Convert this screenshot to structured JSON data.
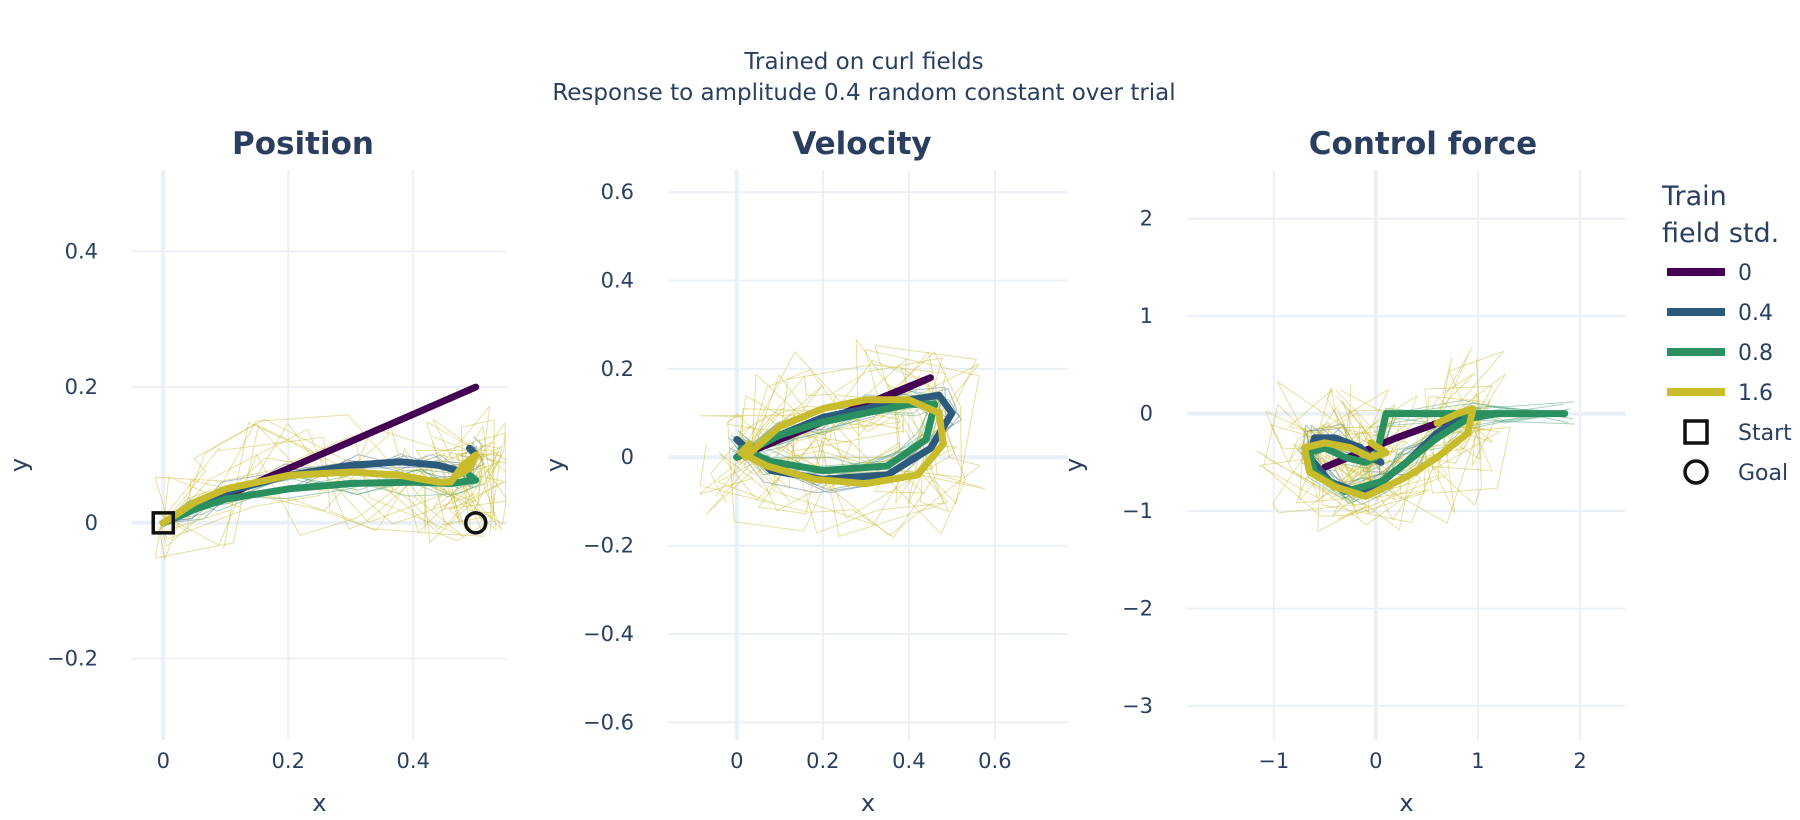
{
  "figure": {
    "title_line1": "Trained on curl fields",
    "title_line2": "Response to amplitude 0.4 random constant over trial"
  },
  "legend": {
    "title_line1": "Train",
    "title_line2": "field std.",
    "items": [
      {
        "label": "0",
        "color": "#440154",
        "kind": "line"
      },
      {
        "label": "0.4",
        "color": "#2c5a7c",
        "kind": "line"
      },
      {
        "label": "0.8",
        "color": "#2b9060",
        "kind": "line"
      },
      {
        "label": "1.6",
        "color": "#c8bb2c",
        "kind": "line"
      },
      {
        "label": "Start",
        "color": "#111111",
        "kind": "square"
      },
      {
        "label": "Goal",
        "color": "#111111",
        "kind": "circle"
      }
    ],
    "placement": "right"
  },
  "chart_data": [
    {
      "type": "line",
      "title": "Position",
      "xlabel": "x",
      "ylabel": "y",
      "xlim": [
        -0.05,
        0.55
      ],
      "ylim": [
        -0.32,
        0.52
      ],
      "xticks": [
        0,
        0.2,
        0.4
      ],
      "xtick_labels": [
        "0",
        "0.2",
        "0.4"
      ],
      "yticks": [
        -0.2,
        0,
        0.2,
        0.4
      ],
      "ytick_labels": [
        "−0.2",
        "0",
        "0.2",
        "0.4"
      ],
      "series": [
        {
          "name": "0",
          "x": [
            0,
            0.1,
            0.2,
            0.3,
            0.4,
            0.5
          ],
          "y": [
            0,
            0.04,
            0.08,
            0.12,
            0.16,
            0.2
          ]
        },
        {
          "name": "0.4",
          "x": [
            0,
            0.05,
            0.1,
            0.2,
            0.3,
            0.38,
            0.44,
            0.48,
            0.5,
            0.49
          ],
          "y": [
            0,
            0.025,
            0.045,
            0.07,
            0.085,
            0.09,
            0.085,
            0.075,
            0.1,
            0.11
          ]
        },
        {
          "name": "0.8",
          "x": [
            0,
            0.05,
            0.1,
            0.2,
            0.3,
            0.4,
            0.46,
            0.5,
            0.49
          ],
          "y": [
            0,
            0.02,
            0.035,
            0.05,
            0.058,
            0.06,
            0.058,
            0.063,
            0.07
          ]
        },
        {
          "name": "1.6",
          "x": [
            0,
            0.05,
            0.1,
            0.2,
            0.3,
            0.38,
            0.44,
            0.46,
            0.48,
            0.5,
            0.49,
            0.47
          ],
          "y": [
            0,
            0.03,
            0.05,
            0.07,
            0.075,
            0.07,
            0.06,
            0.06,
            0.085,
            0.1,
            0.08,
            0.07
          ]
        }
      ],
      "markers": {
        "start": [
          0,
          0
        ],
        "goal": [
          0.5,
          0
        ]
      }
    },
    {
      "type": "line",
      "title": "Velocity",
      "xlabel": "x",
      "ylabel": "y",
      "xlim": [
        -0.16,
        0.77
      ],
      "ylim": [
        -0.64,
        0.65
      ],
      "xticks": [
        0,
        0.2,
        0.4,
        0.6
      ],
      "xtick_labels": [
        "0",
        "0.2",
        "0.4",
        "0.6"
      ],
      "yticks": [
        -0.6,
        -0.4,
        -0.2,
        0,
        0.2,
        0.4,
        0.6
      ],
      "ytick_labels": [
        "−0.6",
        "−0.4",
        "−0.2",
        "0",
        "0.2",
        "0.4",
        "0.6"
      ],
      "series": [
        {
          "name": "0",
          "x": [
            0,
            0.1,
            0.2,
            0.3,
            0.38,
            0.45,
            0.3,
            0.15,
            0.02
          ],
          "y": [
            0,
            0.04,
            0.08,
            0.12,
            0.15,
            0.18,
            0.12,
            0.06,
            0.01
          ]
        },
        {
          "name": "0.4",
          "x": [
            0,
            0.1,
            0.2,
            0.3,
            0.4,
            0.47,
            0.5,
            0.45,
            0.35,
            0.2,
            0.08,
            0
          ],
          "y": [
            0,
            0.05,
            0.09,
            0.11,
            0.13,
            0.14,
            0.1,
            0.02,
            -0.04,
            -0.05,
            -0.03,
            0.04
          ]
        },
        {
          "name": "0.8",
          "x": [
            0,
            0.1,
            0.2,
            0.3,
            0.4,
            0.46,
            0.44,
            0.35,
            0.2,
            0.08,
            0.01
          ],
          "y": [
            0,
            0.05,
            0.08,
            0.1,
            0.12,
            0.12,
            0.04,
            -0.02,
            -0.03,
            -0.01,
            0.02
          ]
        },
        {
          "name": "1.6",
          "x": [
            0.02,
            0.1,
            0.2,
            0.3,
            0.4,
            0.47,
            0.48,
            0.42,
            0.3,
            0.18,
            0.07,
            0.01,
            0.03
          ],
          "y": [
            0,
            0.07,
            0.11,
            0.13,
            0.13,
            0.1,
            0.03,
            -0.04,
            -0.06,
            -0.05,
            -0.02,
            0.01,
            0.03
          ]
        }
      ]
    },
    {
      "type": "line",
      "title": "Control force",
      "xlabel": "x",
      "ylabel": "y",
      "xlim": [
        -1.85,
        2.45
      ],
      "ylim": [
        -3.35,
        2.5
      ],
      "xticks": [
        -1,
        0,
        1,
        2
      ],
      "xtick_labels": [
        "−1",
        "0",
        "1",
        "2"
      ],
      "yticks": [
        -3,
        -2,
        -1,
        0,
        1,
        2
      ],
      "ytick_labels": [
        "−3",
        "−2",
        "−1",
        "0",
        "1",
        "2"
      ],
      "series": [
        {
          "name": "0",
          "x": [
            -0.5,
            -0.2,
            0.2,
            0.6,
            0.9
          ],
          "y": [
            -0.55,
            -0.42,
            -0.25,
            -0.1,
            0
          ]
        },
        {
          "name": "0.4",
          "x": [
            0.9,
            0.6,
            0.3,
            0,
            -0.2,
            -0.45,
            -0.65,
            -0.6,
            -0.4,
            -0.15,
            -0.05,
            0.05
          ],
          "y": [
            0,
            -0.2,
            -0.5,
            -0.75,
            -0.8,
            -0.7,
            -0.45,
            -0.25,
            -0.25,
            -0.35,
            -0.45,
            -0.5
          ]
        },
        {
          "name": "0.8",
          "x": [
            1.85,
            1.2,
            0.9,
            0.6,
            0.3,
            0.05,
            -0.3,
            -0.6,
            -0.65,
            -0.5,
            -0.3,
            -0.1,
            0,
            0.1,
            0.9,
            1.85
          ],
          "y": [
            0,
            0,
            -0.05,
            -0.25,
            -0.5,
            -0.7,
            -0.8,
            -0.6,
            -0.4,
            -0.35,
            -0.45,
            -0.5,
            -0.45,
            0,
            0,
            0
          ]
        },
        {
          "name": "1.6",
          "x": [
            0.6,
            0.8,
            0.95,
            0.9,
            0.6,
            0.3,
            -0.1,
            -0.4,
            -0.65,
            -0.7,
            -0.5,
            -0.25,
            -0.05,
            0.1,
            -0.05
          ],
          "y": [
            -0.1,
            0,
            0.05,
            -0.2,
            -0.45,
            -0.65,
            -0.85,
            -0.75,
            -0.6,
            -0.35,
            -0.3,
            -0.35,
            -0.45,
            -0.4,
            -0.3
          ]
        }
      ]
    }
  ]
}
